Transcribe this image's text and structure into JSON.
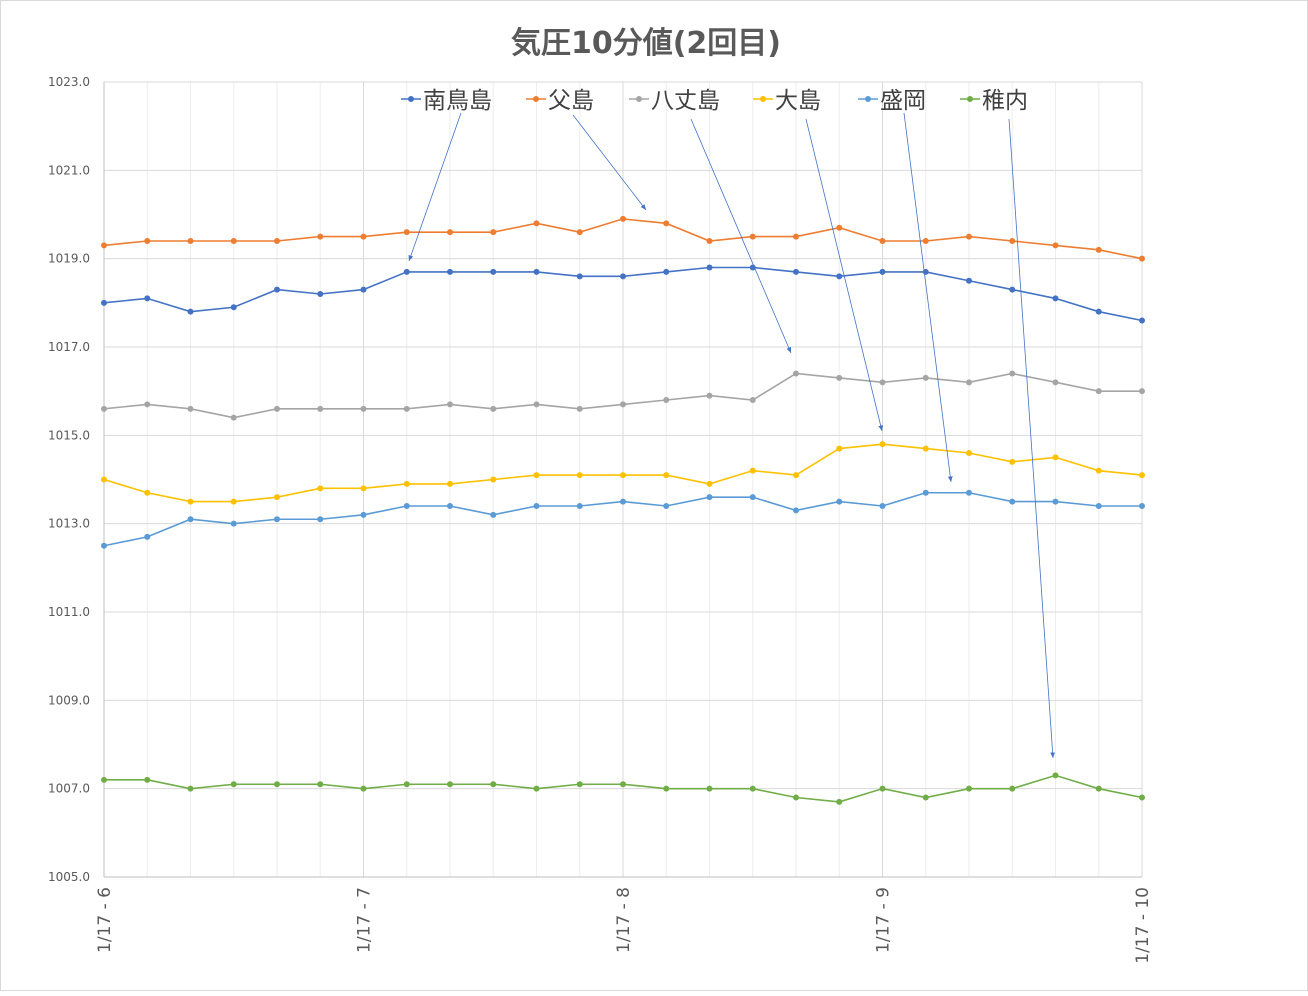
{
  "chart_data": {
    "type": "line",
    "title": "気圧10分値(2回目)",
    "xlabel": "",
    "ylabel": "",
    "ylim": [
      1005.0,
      1023.0
    ],
    "yticks": [
      "1005.0",
      "1007.0",
      "1009.0",
      "1011.0",
      "1013.0",
      "1015.0",
      "1017.0",
      "1019.0",
      "1021.0",
      "1023.0"
    ],
    "xtick_labels": [
      "1/17 - 6",
      "1/17 - 7",
      "1/17 - 8",
      "1/17 - 9",
      "1/17 - 10"
    ],
    "points_per_hour": 6,
    "grid": true,
    "legend_position": "top",
    "series": [
      {
        "name": "南鳥島",
        "color": "#4472c4",
        "values": [
          1018.0,
          1018.1,
          1017.8,
          1017.9,
          1018.3,
          1018.2,
          1018.3,
          1018.7,
          1018.7,
          1018.7,
          1018.7,
          1018.6,
          1018.6,
          1018.7,
          1018.8,
          1018.8,
          1018.7,
          1018.6,
          1018.7,
          1018.7,
          1018.5,
          1018.3,
          1018.1,
          1017.8,
          1017.6
        ]
      },
      {
        "name": "父島",
        "color": "#ed7d31",
        "values": [
          1019.3,
          1019.4,
          1019.4,
          1019.4,
          1019.4,
          1019.5,
          1019.5,
          1019.6,
          1019.6,
          1019.6,
          1019.8,
          1019.6,
          1019.9,
          1019.8,
          1019.4,
          1019.5,
          1019.5,
          1019.7,
          1019.4,
          1019.4,
          1019.5,
          1019.4,
          1019.3,
          1019.2,
          1019.0
        ]
      },
      {
        "name": "八丈島",
        "color": "#a5a5a5",
        "values": [
          1015.6,
          1015.7,
          1015.6,
          1015.4,
          1015.6,
          1015.6,
          1015.6,
          1015.6,
          1015.7,
          1015.6,
          1015.7,
          1015.6,
          1015.7,
          1015.8,
          1015.9,
          1015.8,
          1016.4,
          1016.3,
          1016.2,
          1016.3,
          1016.2,
          1016.4,
          1016.2,
          1016.0,
          1016.0
        ]
      },
      {
        "name": "大島",
        "color": "#ffc000",
        "values": [
          1014.0,
          1013.7,
          1013.5,
          1013.5,
          1013.6,
          1013.8,
          1013.8,
          1013.9,
          1013.9,
          1014.0,
          1014.1,
          1014.1,
          1014.1,
          1014.1,
          1013.9,
          1014.2,
          1014.1,
          1014.7,
          1014.8,
          1014.7,
          1014.6,
          1014.4,
          1014.5,
          1014.2,
          1014.1
        ]
      },
      {
        "name": "盛岡",
        "color": "#5b9bd5",
        "values": [
          1012.5,
          1012.7,
          1013.1,
          1013.0,
          1013.1,
          1013.1,
          1013.2,
          1013.4,
          1013.4,
          1013.2,
          1013.4,
          1013.4,
          1013.5,
          1013.4,
          1013.6,
          1013.6,
          1013.3,
          1013.5,
          1013.4,
          1013.7,
          1013.7,
          1013.5,
          1013.5,
          1013.4,
          1013.4
        ]
      },
      {
        "name": "稚内",
        "color": "#70ad47",
        "values": [
          1007.2,
          1007.2,
          1007.0,
          1007.1,
          1007.1,
          1007.1,
          1007.0,
          1007.1,
          1007.1,
          1007.1,
          1007.0,
          1007.1,
          1007.1,
          1007.0,
          1007.0,
          1007.0,
          1006.8,
          1006.7,
          1007.0,
          1006.8,
          1007.0,
          1007.0,
          1007.3,
          1007.0,
          1006.8
        ]
      }
    ]
  }
}
